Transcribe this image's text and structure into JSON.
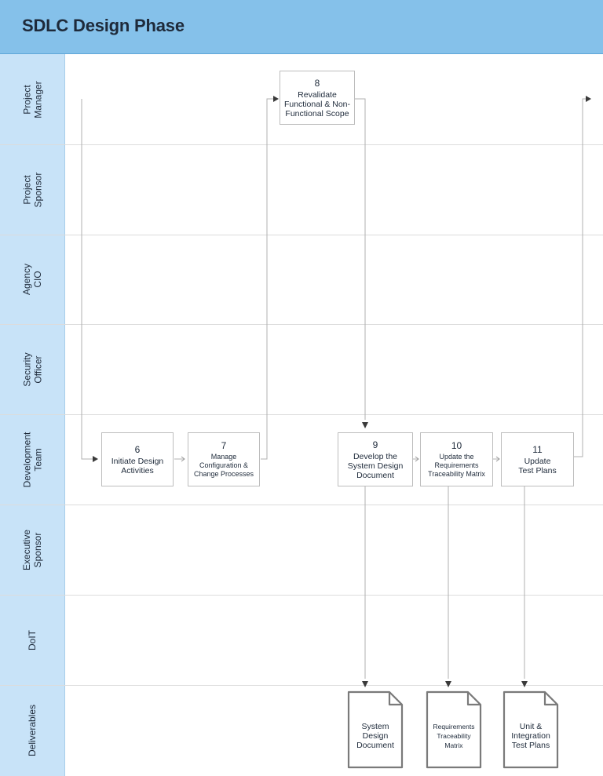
{
  "title": "SDLC Design Phase",
  "lanes": [
    "Project\nManager",
    "Project\nSponsor",
    "Agency\nCIO",
    "Security\nOfficer",
    "Development\nTeam",
    "Executive\nSponsor",
    "DoIT",
    "Deliverables"
  ],
  "steps": {
    "s6": {
      "num": "6",
      "label": "Initiate Design\nActivities"
    },
    "s7": {
      "num": "7",
      "label": "Manage\nConfiguration &\nChange Processes"
    },
    "s8": {
      "num": "8",
      "label": "Revalidate\nFunctional & Non-\nFunctional Scope"
    },
    "s9": {
      "num": "9",
      "label": "Develop the\nSystem Design\nDocument"
    },
    "s10": {
      "num": "10",
      "label": "Update the\nRequirements\nTraceability Matrix"
    },
    "s11": {
      "num": "11",
      "label": "Update\nTest Plans"
    }
  },
  "deliverables": {
    "d1": "System\nDesign\nDocument",
    "d2": "Requirements\nTraceability\nMatrix",
    "d3": "Unit &\nIntegration\nTest Plans"
  },
  "colors": {
    "header": "#85c1ea",
    "lane_column": "#c8e3f8",
    "line": "#b0b0b0",
    "arrow": "#3a3a3a"
  }
}
